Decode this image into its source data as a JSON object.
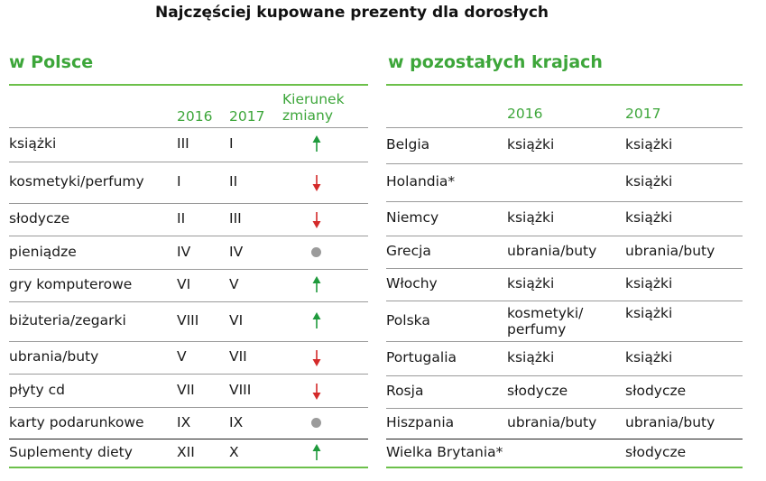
{
  "title": "Najczęściej kupowane prezenty dla dorosłych",
  "left": {
    "section_title": "w Polsce",
    "headers": {
      "col2016": "2016",
      "col2017": "2017",
      "direction_line1": "Kierunek",
      "direction_line2": "zmiany"
    },
    "rows": [
      {
        "item": "książki",
        "y2016": "III",
        "y2017": "I",
        "trend": "up"
      },
      {
        "item": "kosmetyki/perfumy",
        "y2016": "I",
        "y2017": "II",
        "trend": "down"
      },
      {
        "item": "słodycze",
        "y2016": "II",
        "y2017": "III",
        "trend": "down"
      },
      {
        "item": "pieniądze",
        "y2016": "IV",
        "y2017": "IV",
        "trend": "same"
      },
      {
        "item": "gry komputerowe",
        "y2016": "VI",
        "y2017": "V",
        "trend": "up"
      },
      {
        "item": "biżuteria/zegarki",
        "y2016": "VIII",
        "y2017": "VI",
        "trend": "up"
      },
      {
        "item": "ubrania/buty",
        "y2016": "V",
        "y2017": "VII",
        "trend": "down"
      },
      {
        "item": "płyty cd",
        "y2016": "VII",
        "y2017": "VIII",
        "trend": "down"
      },
      {
        "item": "karty podarunkowe",
        "y2016": "IX",
        "y2017": "IX",
        "trend": "same"
      },
      {
        "item": "Suplementy diety",
        "y2016": "XII",
        "y2017": "X",
        "trend": "up"
      }
    ]
  },
  "right": {
    "section_title": "w pozostałych krajach",
    "headers": {
      "col2016": "2016",
      "col2017": "2017"
    },
    "rows": [
      {
        "country": "Belgia",
        "y2016_line1": "książki",
        "y2016_line2": "",
        "y2017": "książki"
      },
      {
        "country": "Holandia*",
        "y2016_line1": "",
        "y2016_line2": "",
        "y2017": "książki"
      },
      {
        "country": "Niemcy",
        "y2016_line1": "książki",
        "y2016_line2": "",
        "y2017": "książki"
      },
      {
        "country": "Grecja",
        "y2016_line1": "ubrania/buty",
        "y2016_line2": "",
        "y2017": "ubrania/buty"
      },
      {
        "country": "Włochy",
        "y2016_line1": "książki",
        "y2016_line2": "",
        "y2017": "książki"
      },
      {
        "country": "Polska",
        "y2016_line1": "kosmetyki/",
        "y2016_line2": "perfumy",
        "y2017": "książki"
      },
      {
        "country": "Portugalia",
        "y2016_line1": "książki",
        "y2016_line2": "",
        "y2017": "książki"
      },
      {
        "country": "Rosja",
        "y2016_line1": "słodycze",
        "y2016_line2": "",
        "y2017": "słodycze"
      },
      {
        "country": "Hiszpania",
        "y2016_line1": "ubrania/buty",
        "y2016_line2": "",
        "y2017": "ubrania/buty"
      },
      {
        "country": "Wielka Brytania*",
        "y2016_line1": "",
        "y2016_line2": "",
        "y2017": "słodycze"
      }
    ]
  },
  "colors": {
    "accent_green": "#3da63a",
    "arrow_up": "#1f9a3c",
    "arrow_down": "#d42a2a",
    "dot_gray": "#9b9b9b"
  }
}
